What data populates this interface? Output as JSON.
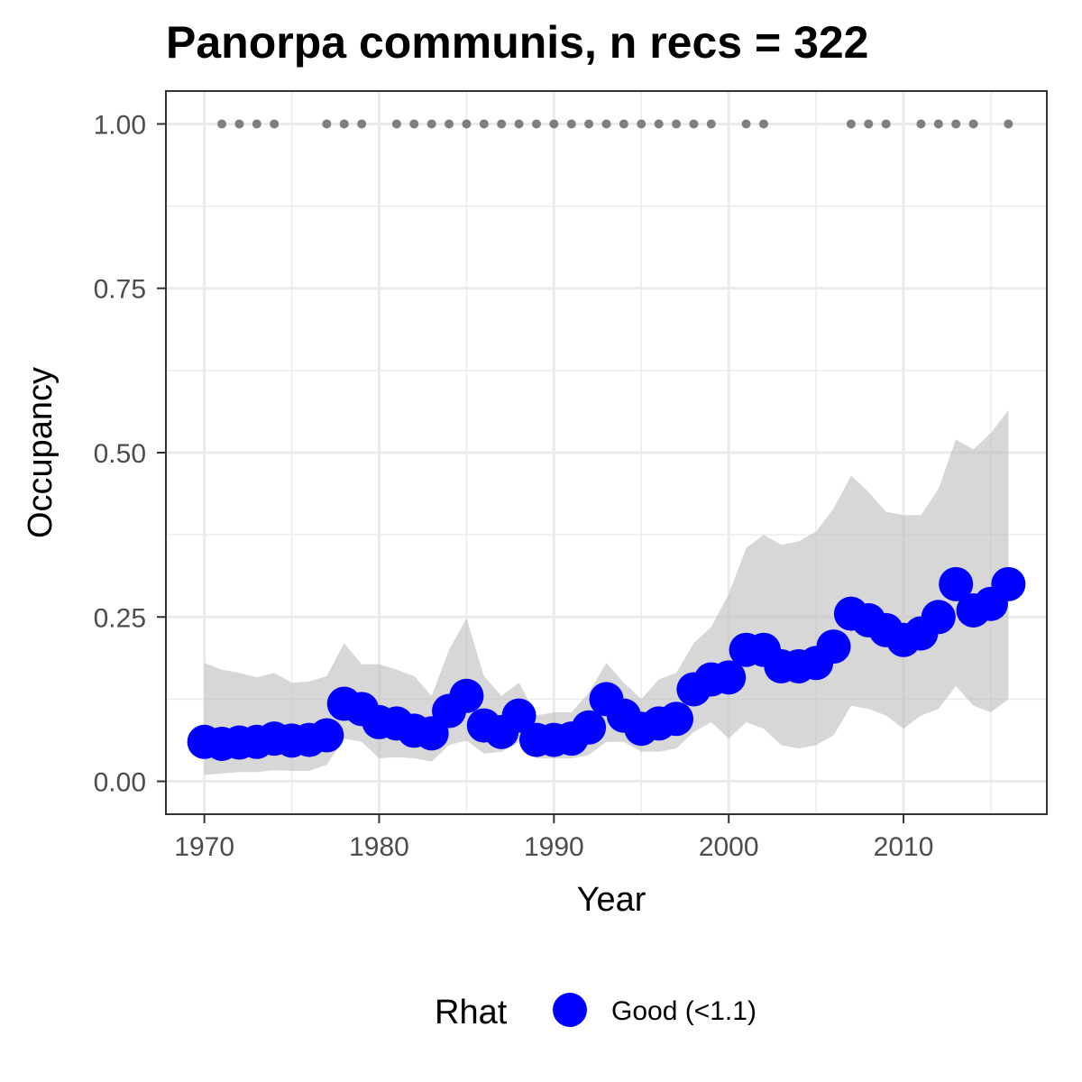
{
  "chart_data": {
    "type": "scatter",
    "title": "Panorpa communis, n recs = 322",
    "xlabel": "Year",
    "ylabel": "Occupancy",
    "xlim": [
      1967.8,
      2018.2
    ],
    "ylim": [
      -0.05,
      1.05
    ],
    "x_ticks": [
      1970,
      1980,
      1990,
      2000,
      2010
    ],
    "x_tick_labels": [
      "1970",
      "1980",
      "1990",
      "2000",
      "2010"
    ],
    "y_ticks": [
      0,
      0.25,
      0.5,
      0.75,
      1.0
    ],
    "y_tick_labels": [
      "0.00",
      "0.25",
      "0.50",
      "0.75",
      "1.00"
    ],
    "grid": true,
    "legend": {
      "title": "Rhat",
      "placement": "bottom",
      "entries": [
        {
          "label": "Good (<1.1)",
          "color": "#0000ff"
        }
      ]
    },
    "colors": {
      "points": "#0000ff",
      "ribbon": "#bebebe",
      "records": "#7f7f7f",
      "grid": "#ebebeb",
      "border": "#333333"
    },
    "series": [
      {
        "name": "Good (<1.1)",
        "x": [
          1970,
          1971,
          1972,
          1973,
          1974,
          1975,
          1976,
          1977,
          1978,
          1979,
          1980,
          1981,
          1982,
          1983,
          1984,
          1985,
          1986,
          1987,
          1988,
          1989,
          1990,
          1991,
          1992,
          1993,
          1994,
          1995,
          1996,
          1997,
          1998,
          1999,
          2000,
          2001,
          2002,
          2003,
          2004,
          2005,
          2006,
          2007,
          2008,
          2009,
          2010,
          2011,
          2012,
          2013,
          2014,
          2015,
          2016
        ],
        "y": [
          0.06,
          0.057,
          0.059,
          0.06,
          0.065,
          0.062,
          0.063,
          0.07,
          0.118,
          0.11,
          0.09,
          0.088,
          0.077,
          0.073,
          0.107,
          0.13,
          0.085,
          0.075,
          0.1,
          0.063,
          0.063,
          0.065,
          0.082,
          0.125,
          0.1,
          0.08,
          0.088,
          0.095,
          0.14,
          0.155,
          0.158,
          0.2,
          0.2,
          0.175,
          0.175,
          0.18,
          0.205,
          0.255,
          0.245,
          0.23,
          0.215,
          0.225,
          0.25,
          0.3,
          0.26,
          0.27,
          0.3
        ]
      },
      {
        "name": "ribbon",
        "x": [
          1970,
          1971,
          1972,
          1973,
          1974,
          1975,
          1976,
          1977,
          1978,
          1979,
          1980,
          1981,
          1982,
          1983,
          1984,
          1985,
          1986,
          1987,
          1988,
          1989,
          1990,
          1991,
          1992,
          1993,
          1994,
          1995,
          1996,
          1997,
          1998,
          1999,
          2000,
          2001,
          2002,
          2003,
          2004,
          2005,
          2006,
          2007,
          2008,
          2009,
          2010,
          2011,
          2012,
          2013,
          2014,
          2015,
          2016
        ],
        "lower": [
          0.01,
          0.012,
          0.014,
          0.014,
          0.017,
          0.016,
          0.016,
          0.025,
          0.065,
          0.06,
          0.035,
          0.037,
          0.035,
          0.03,
          0.055,
          0.062,
          0.042,
          0.045,
          0.06,
          0.035,
          0.035,
          0.035,
          0.04,
          0.06,
          0.06,
          0.045,
          0.045,
          0.05,
          0.075,
          0.09,
          0.065,
          0.09,
          0.08,
          0.055,
          0.05,
          0.055,
          0.07,
          0.115,
          0.11,
          0.1,
          0.08,
          0.1,
          0.11,
          0.145,
          0.115,
          0.105,
          0.125
        ],
        "upper": [
          0.18,
          0.17,
          0.165,
          0.158,
          0.165,
          0.15,
          0.152,
          0.16,
          0.21,
          0.178,
          0.178,
          0.17,
          0.16,
          0.13,
          0.2,
          0.248,
          0.16,
          0.13,
          0.15,
          0.1,
          0.105,
          0.105,
          0.135,
          0.18,
          0.15,
          0.125,
          0.155,
          0.165,
          0.21,
          0.235,
          0.285,
          0.355,
          0.375,
          0.36,
          0.365,
          0.38,
          0.415,
          0.465,
          0.44,
          0.41,
          0.405,
          0.405,
          0.445,
          0.52,
          0.505,
          0.53,
          0.565
        ]
      },
      {
        "name": "records",
        "x": [
          1971,
          1972,
          1973,
          1974,
          1977,
          1978,
          1979,
          1981,
          1982,
          1983,
          1984,
          1985,
          1986,
          1987,
          1988,
          1989,
          1990,
          1991,
          1992,
          1993,
          1994,
          1995,
          1996,
          1997,
          1998,
          1999,
          2001,
          2002,
          2007,
          2008,
          2009,
          2011,
          2012,
          2013,
          2014,
          2016
        ],
        "y": [
          1,
          1,
          1,
          1,
          1,
          1,
          1,
          1,
          1,
          1,
          1,
          1,
          1,
          1,
          1,
          1,
          1,
          1,
          1,
          1,
          1,
          1,
          1,
          1,
          1,
          1,
          1,
          1,
          1,
          1,
          1,
          1,
          1,
          1,
          1,
          1
        ]
      }
    ]
  }
}
